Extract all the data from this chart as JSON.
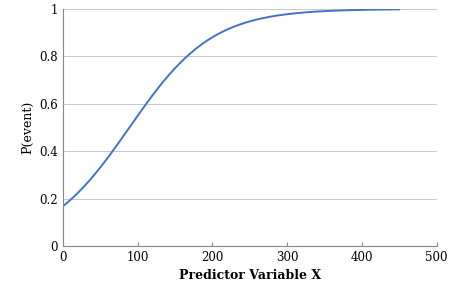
{
  "title": "",
  "xlabel": "Predictor Variable X",
  "ylabel": "P(event)",
  "xlim": [
    0,
    500
  ],
  "ylim": [
    0,
    1.0
  ],
  "x_ticks": [
    0,
    100,
    200,
    300,
    400,
    500
  ],
  "y_ticks": [
    0,
    0.2,
    0.4,
    0.6,
    0.8,
    1.0
  ],
  "logistic_beta0": -1.6,
  "logistic_beta1": 0.018,
  "line_color": "#4472C4",
  "line_width": 1.4,
  "background_color": "#ffffff",
  "grid_color": "#c8c8c8",
  "xlabel_fontsize": 9,
  "ylabel_fontsize": 9,
  "tick_fontsize": 8.5,
  "xlabel_fontweight": "bold",
  "figsize": [
    4.5,
    3.0
  ],
  "dpi": 100
}
